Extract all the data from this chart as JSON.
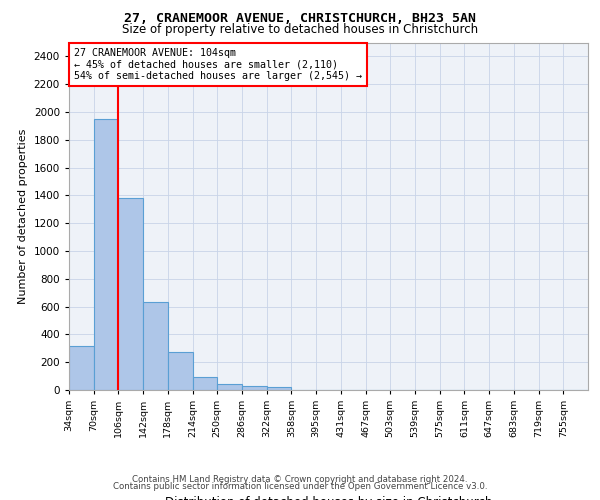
{
  "title1": "27, CRANEMOOR AVENUE, CHRISTCHURCH, BH23 5AN",
  "title2": "Size of property relative to detached houses in Christchurch",
  "xlabel": "Distribution of detached houses by size in Christchurch",
  "ylabel": "Number of detached properties",
  "bin_labels": [
    "34sqm",
    "70sqm",
    "106sqm",
    "142sqm",
    "178sqm",
    "214sqm",
    "250sqm",
    "286sqm",
    "322sqm",
    "358sqm",
    "395sqm",
    "431sqm",
    "467sqm",
    "503sqm",
    "539sqm",
    "575sqm",
    "611sqm",
    "647sqm",
    "683sqm",
    "719sqm",
    "755sqm"
  ],
  "bar_values": [
    315,
    1950,
    1380,
    630,
    270,
    95,
    40,
    28,
    20,
    0,
    0,
    0,
    0,
    0,
    0,
    0,
    0,
    0,
    0,
    0,
    0
  ],
  "bar_color": "#aec6e8",
  "bar_edge_color": "#5a9fd4",
  "vline_x": 2,
  "vline_color": "red",
  "annotation_line1": "27 CRANEMOOR AVENUE: 104sqm",
  "annotation_line2": "← 45% of detached houses are smaller (2,110)",
  "annotation_line3": "54% of semi-detached houses are larger (2,545) →",
  "ylim": [
    0,
    2500
  ],
  "yticks": [
    0,
    200,
    400,
    600,
    800,
    1000,
    1200,
    1400,
    1600,
    1800,
    2000,
    2200,
    2400
  ],
  "footer1": "Contains HM Land Registry data © Crown copyright and database right 2024.",
  "footer2": "Contains public sector information licensed under the Open Government Licence v3.0.",
  "background_color": "#eef2f8",
  "grid_color": "#c8d4e8",
  "fig_width": 6.0,
  "fig_height": 5.0
}
